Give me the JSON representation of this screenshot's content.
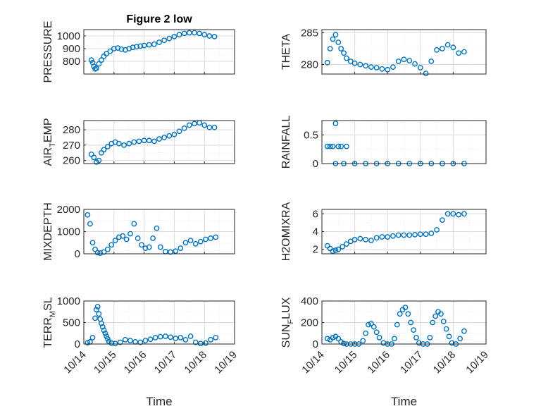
{
  "figure": {
    "title": "Figure 2 low",
    "xlabel": "Time",
    "x_ticks": [
      "10/14",
      "10/15",
      "10/16",
      "10/17",
      "10/18",
      "10/19"
    ],
    "marker_color": "#0072BD"
  },
  "chart_data": [
    {
      "type": "scatter",
      "id": "pressure",
      "ylabel": "PRESSURE",
      "title": "Figure 2 low",
      "xlim": [
        "10/14",
        "10/19"
      ],
      "ylim": [
        700,
        1050
      ],
      "yticks": [
        800,
        900,
        1000
      ],
      "grid": true,
      "x": [
        "10/14 06:00",
        "10/14 07:00",
        "10/14 08:00",
        "10/14 09:00",
        "10/14 10:00",
        "10/14 12:00",
        "10/14 14:00",
        "10/14 16:00",
        "10/14 18:00",
        "10/14 21:00",
        "10/15 00:00",
        "10/15 03:00",
        "10/15 06:00",
        "10/15 09:00",
        "10/15 12:00",
        "10/15 15:00",
        "10/15 18:00",
        "10/15 21:00",
        "10/16 00:00",
        "10/16 04:00",
        "10/16 08:00",
        "10/16 12:00",
        "10/16 16:00",
        "10/16 20:00",
        "10/17 00:00",
        "10/17 04:00",
        "10/17 08:00",
        "10/17 12:00",
        "10/17 16:00",
        "10/17 20:00",
        "10/18 00:00",
        "10/18 04:00",
        "10/18 08:00"
      ],
      "y": [
        810,
        790,
        760,
        740,
        745,
        780,
        810,
        840,
        860,
        880,
        900,
        905,
        895,
        890,
        900,
        910,
        915,
        920,
        925,
        930,
        935,
        950,
        965,
        980,
        995,
        1010,
        1020,
        1025,
        1025,
        1020,
        1010,
        1000,
        995
      ]
    },
    {
      "type": "scatter",
      "id": "theta",
      "ylabel": "THETA",
      "xlim": [
        "10/14",
        "10/19"
      ],
      "ylim": [
        278.5,
        285.5
      ],
      "yticks": [
        280,
        285
      ],
      "grid": true,
      "x": [
        "10/14 04:00",
        "10/14 06:00",
        "10/14 08:00",
        "10/14 10:00",
        "10/14 12:00",
        "10/14 14:00",
        "10/14 16:00",
        "10/14 18:00",
        "10/14 21:00",
        "10/15 00:00",
        "10/15 04:00",
        "10/15 08:00",
        "10/15 12:00",
        "10/15 16:00",
        "10/15 20:00",
        "10/16 00:00",
        "10/16 04:00",
        "10/16 08:00",
        "10/16 12:00",
        "10/16 16:00",
        "10/16 20:00",
        "10/17 00:00",
        "10/17 04:00",
        "10/17 08:00",
        "10/17 12:00",
        "10/17 16:00",
        "10/17 20:00",
        "10/18 00:00",
        "10/18 04:00",
        "10/18 08:00"
      ],
      "y": [
        280.3,
        282.5,
        284.0,
        284.7,
        283.5,
        282.5,
        281.8,
        281.0,
        280.5,
        280.2,
        280.0,
        279.8,
        279.6,
        279.5,
        279.3,
        279.2,
        279.6,
        280.5,
        280.8,
        280.6,
        280.1,
        279.5,
        278.6,
        280.5,
        282.3,
        282.5,
        283.1,
        282.7,
        281.8,
        282.0
      ]
    },
    {
      "type": "scatter",
      "id": "airtemp",
      "ylabel": "AIR",
      "ylabel_sub": "T",
      "ylabel_rest": "EMP",
      "xlim": [
        "10/14",
        "10/19"
      ],
      "ylim": [
        258,
        286
      ],
      "yticks": [
        260,
        270,
        280
      ],
      "grid": true,
      "x": [
        "10/14 06:00",
        "10/14 08:00",
        "10/14 10:00",
        "10/14 12:00",
        "10/14 14:00",
        "10/14 16:00",
        "10/14 19:00",
        "10/14 22:00",
        "10/15 01:00",
        "10/15 04:00",
        "10/15 08:00",
        "10/15 12:00",
        "10/15 16:00",
        "10/15 20:00",
        "10/16 00:00",
        "10/16 04:00",
        "10/16 08:00",
        "10/16 12:00",
        "10/16 16:00",
        "10/16 20:00",
        "10/17 00:00",
        "10/17 04:00",
        "10/17 08:00",
        "10/17 12:00",
        "10/17 16:00",
        "10/17 20:00",
        "10/18 00:00",
        "10/18 04:00",
        "10/18 08:00"
      ],
      "y": [
        264,
        262,
        259,
        260,
        265,
        267,
        269,
        271,
        272,
        271,
        270,
        271,
        272,
        272.5,
        273,
        273,
        272.5,
        274,
        275,
        276,
        277,
        279,
        281,
        283,
        284,
        284.5,
        283,
        281.5,
        281.5
      ]
    },
    {
      "type": "scatter",
      "id": "rainfall",
      "ylabel": "RAINFALL",
      "xlim": [
        "10/14",
        "10/19"
      ],
      "ylim": [
        0,
        0.75
      ],
      "yticks": [
        0,
        0.5
      ],
      "grid": true,
      "x": [
        "10/14 04:00",
        "10/14 06:00",
        "10/14 08:00",
        "10/14 10:00",
        "10/14 12:00",
        "10/14 14:00",
        "10/14 18:00",
        "10/14 10:00",
        "10/14 16:00",
        "10/15 00:00",
        "10/15 08:00",
        "10/15 16:00",
        "10/16 00:00",
        "10/16 08:00",
        "10/16 16:00",
        "10/17 00:00",
        "10/17 08:00",
        "10/17 16:00",
        "10/18 00:00",
        "10/18 08:00"
      ],
      "y": [
        0.3,
        0.3,
        0.3,
        0.7,
        0.3,
        0.3,
        0.3,
        0,
        0,
        0,
        0,
        0,
        0,
        0,
        0,
        0,
        0,
        0,
        0,
        0
      ]
    },
    {
      "type": "scatter",
      "id": "mixdepth",
      "ylabel": "MIXDEPTH",
      "xlim": [
        "10/14",
        "10/19"
      ],
      "ylim": [
        0,
        2000
      ],
      "yticks": [
        0,
        1000,
        2000
      ],
      "grid": true,
      "x": [
        "10/14 03:00",
        "10/14 05:00",
        "10/14 07:00",
        "10/14 09:00",
        "10/14 11:00",
        "10/14 13:00",
        "10/14 16:00",
        "10/14 19:00",
        "10/14 22:00",
        "10/15 01:00",
        "10/15 04:00",
        "10/15 07:00",
        "10/15 10:00",
        "10/15 13:00",
        "10/15 16:00",
        "10/15 19:00",
        "10/15 22:00",
        "10/16 01:00",
        "10/16 04:00",
        "10/16 07:00",
        "10/16 10:00",
        "10/16 13:00",
        "10/16 17:00",
        "10/16 21:00",
        "10/17 01:00",
        "10/17 05:00",
        "10/17 09:00",
        "10/17 13:00",
        "10/17 17:00",
        "10/17 21:00",
        "10/18 01:00",
        "10/18 05:00",
        "10/18 09:00"
      ],
      "y": [
        1750,
        1350,
        500,
        200,
        50,
        30,
        80,
        200,
        400,
        600,
        750,
        800,
        650,
        900,
        1350,
        700,
        400,
        250,
        300,
        700,
        1150,
        300,
        100,
        80,
        120,
        250,
        500,
        600,
        450,
        550,
        650,
        700,
        750
      ]
    },
    {
      "type": "scatter",
      "id": "h2omixra",
      "ylabel": "H2OMIXRA",
      "xlim": [
        "10/14",
        "10/19"
      ],
      "ylim": [
        1.5,
        6.5
      ],
      "yticks": [
        2,
        4,
        6
      ],
      "grid": true,
      "x": [
        "10/14 04:00",
        "10/14 06:00",
        "10/14 08:00",
        "10/14 10:00",
        "10/14 12:00",
        "10/14 15:00",
        "10/14 18:00",
        "10/14 21:00",
        "10/15 00:00",
        "10/15 04:00",
        "10/15 08:00",
        "10/15 12:00",
        "10/15 16:00",
        "10/15 20:00",
        "10/16 00:00",
        "10/16 04:00",
        "10/16 08:00",
        "10/16 12:00",
        "10/16 16:00",
        "10/16 20:00",
        "10/17 00:00",
        "10/17 04:00",
        "10/17 08:00",
        "10/17 12:00",
        "10/17 16:00",
        "10/17 20:00",
        "10/18 00:00",
        "10/18 04:00",
        "10/18 08:00"
      ],
      "y": [
        2.4,
        2.1,
        1.8,
        1.9,
        2.0,
        2.3,
        2.6,
        2.9,
        3.1,
        3.2,
        3.1,
        3.0,
        3.3,
        3.4,
        3.4,
        3.5,
        3.6,
        3.6,
        3.6,
        3.65,
        3.7,
        3.7,
        3.8,
        4.2,
        5.3,
        6.0,
        6.0,
        5.9,
        6.0
      ]
    },
    {
      "type": "scatter",
      "id": "terrmsl",
      "ylabel": "TERR",
      "ylabel_sub": "M",
      "ylabel_rest": "SL",
      "xlim": [
        "10/14",
        "10/19"
      ],
      "ylim": [
        0,
        1000
      ],
      "yticks": [
        0,
        500,
        1000
      ],
      "grid": true,
      "x": [
        "10/14 03:00",
        "10/14 05:00",
        "10/14 07:00",
        "10/14 09:00",
        "10/14 10:00",
        "10/14 11:00",
        "10/14 12:00",
        "10/14 13:00",
        "10/14 14:00",
        "10/14 15:00",
        "10/14 16:00",
        "10/14 17:00",
        "10/14 18:00",
        "10/14 19:00",
        "10/14 20:00",
        "10/14 22:00",
        "10/15 01:00",
        "10/15 05:00",
        "10/15 09:00",
        "10/15 13:00",
        "10/15 17:00",
        "10/15 21:00",
        "10/16 01:00",
        "10/16 05:00",
        "10/16 09:00",
        "10/16 13:00",
        "10/16 17:00",
        "10/16 21:00",
        "10/17 01:00",
        "10/17 05:00",
        "10/17 09:00",
        "10/17 13:00",
        "10/17 17:00",
        "10/17 21:00",
        "10/18 01:00",
        "10/18 05:00",
        "10/18 09:00"
      ],
      "y": [
        30,
        50,
        150,
        600,
        800,
        870,
        700,
        580,
        480,
        400,
        320,
        250,
        180,
        120,
        60,
        20,
        10,
        40,
        100,
        80,
        50,
        40,
        80,
        110,
        150,
        170,
        180,
        160,
        130,
        150,
        100,
        180,
        40,
        10,
        20,
        100,
        150
      ]
    },
    {
      "type": "scatter",
      "id": "sunflux",
      "ylabel": "SUN",
      "ylabel_sub": "F",
      "ylabel_rest": "LUX",
      "xlim": [
        "10/14",
        "10/19"
      ],
      "ylim": [
        0,
        400
      ],
      "yticks": [
        0,
        200,
        400
      ],
      "grid": true,
      "x": [
        "10/14 04:00",
        "10/14 06:00",
        "10/14 08:00",
        "10/14 10:00",
        "10/14 12:00",
        "10/14 14:00",
        "10/14 16:00",
        "10/14 18:00",
        "10/14 21:00",
        "10/15 00:00",
        "10/15 03:00",
        "10/15 06:00",
        "10/15 08:00",
        "10/15 10:00",
        "10/15 12:00",
        "10/15 14:00",
        "10/15 16:00",
        "10/15 18:00",
        "10/15 21:00",
        "10/16 00:00",
        "10/16 03:00",
        "10/16 05:00",
        "10/16 07:00",
        "10/16 09:00",
        "10/16 11:00",
        "10/16 13:00",
        "10/16 15:00",
        "10/16 17:00",
        "10/16 19:00",
        "10/16 21:00",
        "10/16 23:00",
        "10/17 02:00",
        "10/17 05:00",
        "10/17 07:00",
        "10/17 09:00",
        "10/17 11:00",
        "10/17 13:00",
        "10/17 15:00",
        "10/17 17:00",
        "10/17 19:00",
        "10/17 21:00",
        "10/17 23:00",
        "10/18 02:00",
        "10/18 05:00",
        "10/18 08:00"
      ],
      "y": [
        50,
        40,
        60,
        70,
        50,
        20,
        5,
        0,
        0,
        0,
        0,
        30,
        100,
        180,
        190,
        160,
        110,
        60,
        10,
        0,
        0,
        50,
        180,
        280,
        320,
        340,
        280,
        200,
        130,
        60,
        10,
        0,
        0,
        60,
        200,
        260,
        300,
        280,
        210,
        140,
        70,
        10,
        0,
        50,
        120
      ]
    }
  ]
}
